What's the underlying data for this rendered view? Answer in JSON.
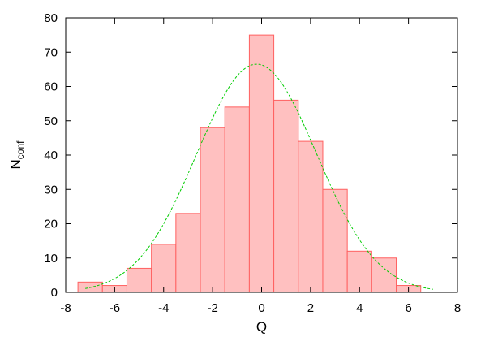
{
  "chart_data": {
    "type": "bar",
    "subtype": "histogram",
    "xlabel": "Q",
    "ylabel": "N",
    "ylabel_subscript": "conf",
    "xlim": [
      -8,
      8
    ],
    "ylim": [
      0,
      80
    ],
    "xticks": [
      -8,
      -6,
      -4,
      -2,
      0,
      2,
      4,
      6,
      8
    ],
    "yticks": [
      0,
      10,
      20,
      30,
      40,
      50,
      60,
      70,
      80
    ],
    "bin_width": 1,
    "bins": [
      {
        "center": -7,
        "value": 3
      },
      {
        "center": -6,
        "value": 2
      },
      {
        "center": -5,
        "value": 7
      },
      {
        "center": -4,
        "value": 14
      },
      {
        "center": -3,
        "value": 23
      },
      {
        "center": -2,
        "value": 48
      },
      {
        "center": -1,
        "value": 54
      },
      {
        "center": 0,
        "value": 75
      },
      {
        "center": 1,
        "value": 56
      },
      {
        "center": 2,
        "value": 44
      },
      {
        "center": 3,
        "value": 30
      },
      {
        "center": 4,
        "value": 12
      },
      {
        "center": 5,
        "value": 10
      },
      {
        "center": 6,
        "value": 2
      }
    ],
    "fit_curve": {
      "type": "gaussian",
      "style": "dashed",
      "color": "#00cc00",
      "amplitude": 66.5,
      "mean": -0.2,
      "sigma": 2.45,
      "x_range": [
        -7.2,
        7.0
      ]
    },
    "colors": {
      "bar_fill": "#ffc0c0",
      "bar_stroke": "#ff6060"
    },
    "grid": false,
    "legend": "none"
  }
}
